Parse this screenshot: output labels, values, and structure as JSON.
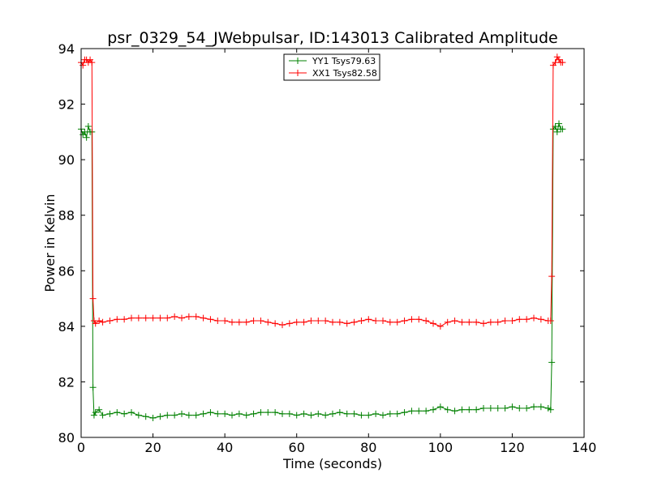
{
  "chart_data": {
    "type": "line",
    "title": "psr_0329_54_JWebpulsar, ID:143013 Calibrated Amplitude",
    "xlabel": "Time (seconds)",
    "ylabel": "Power in Kelvin",
    "xlim": [
      0,
      140
    ],
    "ylim": [
      80,
      94
    ],
    "xticks": [
      "0",
      "20",
      "40",
      "60",
      "80",
      "100",
      "120",
      "140"
    ],
    "yticks": [
      "80",
      "82",
      "84",
      "86",
      "88",
      "90",
      "92",
      "94"
    ],
    "legend_position": "top-center",
    "grid": false,
    "marker": "+",
    "series": [
      {
        "name": "YY1 Tsys79.63",
        "color": "#008000",
        "points": [
          [
            0.0,
            91.1
          ],
          [
            0.5,
            90.9
          ],
          [
            1.0,
            91.0
          ],
          [
            1.5,
            90.8
          ],
          [
            2.0,
            91.2
          ],
          [
            2.5,
            91.0
          ],
          [
            3.0,
            91.0
          ],
          [
            3.3,
            81.8
          ],
          [
            3.6,
            80.8
          ],
          [
            4,
            80.9
          ],
          [
            5,
            81.0
          ],
          [
            6,
            80.8
          ],
          [
            8,
            80.85
          ],
          [
            10,
            80.9
          ],
          [
            12,
            80.85
          ],
          [
            14,
            80.9
          ],
          [
            16,
            80.8
          ],
          [
            18,
            80.75
          ],
          [
            20,
            80.7
          ],
          [
            22,
            80.75
          ],
          [
            24,
            80.8
          ],
          [
            26,
            80.8
          ],
          [
            28,
            80.85
          ],
          [
            30,
            80.8
          ],
          [
            32,
            80.8
          ],
          [
            34,
            80.85
          ],
          [
            36,
            80.9
          ],
          [
            38,
            80.85
          ],
          [
            40,
            80.85
          ],
          [
            42,
            80.8
          ],
          [
            44,
            80.85
          ],
          [
            46,
            80.8
          ],
          [
            48,
            80.85
          ],
          [
            50,
            80.9
          ],
          [
            52,
            80.9
          ],
          [
            54,
            80.9
          ],
          [
            56,
            80.85
          ],
          [
            58,
            80.85
          ],
          [
            60,
            80.8
          ],
          [
            62,
            80.85
          ],
          [
            64,
            80.8
          ],
          [
            66,
            80.85
          ],
          [
            68,
            80.8
          ],
          [
            70,
            80.85
          ],
          [
            72,
            80.9
          ],
          [
            74,
            80.85
          ],
          [
            76,
            80.85
          ],
          [
            78,
            80.8
          ],
          [
            80,
            80.8
          ],
          [
            82,
            80.85
          ],
          [
            84,
            80.8
          ],
          [
            86,
            80.85
          ],
          [
            88,
            80.85
          ],
          [
            90,
            80.9
          ],
          [
            92,
            80.95
          ],
          [
            94,
            80.95
          ],
          [
            96,
            80.95
          ],
          [
            98,
            81.0
          ],
          [
            100,
            81.1
          ],
          [
            102,
            81.0
          ],
          [
            104,
            80.95
          ],
          [
            106,
            81.0
          ],
          [
            108,
            81.0
          ],
          [
            110,
            81.0
          ],
          [
            112,
            81.05
          ],
          [
            114,
            81.05
          ],
          [
            116,
            81.05
          ],
          [
            118,
            81.05
          ],
          [
            120,
            81.1
          ],
          [
            122,
            81.05
          ],
          [
            124,
            81.05
          ],
          [
            126,
            81.1
          ],
          [
            128,
            81.1
          ],
          [
            130,
            81.05
          ],
          [
            130.7,
            81.0
          ],
          [
            131.0,
            82.7
          ],
          [
            131.4,
            91.1
          ],
          [
            132.0,
            91.2
          ],
          [
            132.5,
            91.0
          ],
          [
            133.0,
            91.3
          ],
          [
            133.5,
            91.1
          ],
          [
            134.0,
            91.1
          ]
        ]
      },
      {
        "name": "XX1 Tsys82.58",
        "color": "#ff0000",
        "points": [
          [
            0.0,
            93.5
          ],
          [
            0.5,
            93.4
          ],
          [
            1.0,
            93.6
          ],
          [
            1.5,
            93.6
          ],
          [
            2.0,
            93.5
          ],
          [
            2.5,
            93.6
          ],
          [
            3.0,
            93.5
          ],
          [
            3.3,
            85.0
          ],
          [
            3.6,
            84.2
          ],
          [
            4,
            84.1
          ],
          [
            5,
            84.2
          ],
          [
            6,
            84.15
          ],
          [
            8,
            84.2
          ],
          [
            10,
            84.25
          ],
          [
            12,
            84.25
          ],
          [
            14,
            84.3
          ],
          [
            16,
            84.3
          ],
          [
            18,
            84.3
          ],
          [
            20,
            84.3
          ],
          [
            22,
            84.3
          ],
          [
            24,
            84.3
          ],
          [
            26,
            84.35
          ],
          [
            28,
            84.3
          ],
          [
            30,
            84.35
          ],
          [
            32,
            84.35
          ],
          [
            34,
            84.3
          ],
          [
            36,
            84.25
          ],
          [
            38,
            84.2
          ],
          [
            40,
            84.2
          ],
          [
            42,
            84.15
          ],
          [
            44,
            84.15
          ],
          [
            46,
            84.15
          ],
          [
            48,
            84.2
          ],
          [
            50,
            84.2
          ],
          [
            52,
            84.15
          ],
          [
            54,
            84.1
          ],
          [
            56,
            84.05
          ],
          [
            58,
            84.1
          ],
          [
            60,
            84.15
          ],
          [
            62,
            84.15
          ],
          [
            64,
            84.2
          ],
          [
            66,
            84.2
          ],
          [
            68,
            84.2
          ],
          [
            70,
            84.15
          ],
          [
            72,
            84.15
          ],
          [
            74,
            84.1
          ],
          [
            76,
            84.15
          ],
          [
            78,
            84.2
          ],
          [
            80,
            84.25
          ],
          [
            82,
            84.2
          ],
          [
            84,
            84.2
          ],
          [
            86,
            84.15
          ],
          [
            88,
            84.15
          ],
          [
            90,
            84.2
          ],
          [
            92,
            84.25
          ],
          [
            94,
            84.25
          ],
          [
            96,
            84.2
          ],
          [
            98,
            84.1
          ],
          [
            100,
            84.0
          ],
          [
            102,
            84.15
          ],
          [
            104,
            84.2
          ],
          [
            106,
            84.15
          ],
          [
            108,
            84.15
          ],
          [
            110,
            84.15
          ],
          [
            112,
            84.1
          ],
          [
            114,
            84.15
          ],
          [
            116,
            84.15
          ],
          [
            118,
            84.2
          ],
          [
            120,
            84.2
          ],
          [
            122,
            84.25
          ],
          [
            124,
            84.25
          ],
          [
            126,
            84.3
          ],
          [
            128,
            84.25
          ],
          [
            130,
            84.2
          ],
          [
            130.7,
            84.2
          ],
          [
            131.0,
            85.8
          ],
          [
            131.4,
            93.4
          ],
          [
            132.0,
            93.5
          ],
          [
            132.5,
            93.7
          ],
          [
            133.0,
            93.6
          ],
          [
            133.5,
            93.5
          ],
          [
            134.0,
            93.5
          ]
        ]
      }
    ]
  }
}
